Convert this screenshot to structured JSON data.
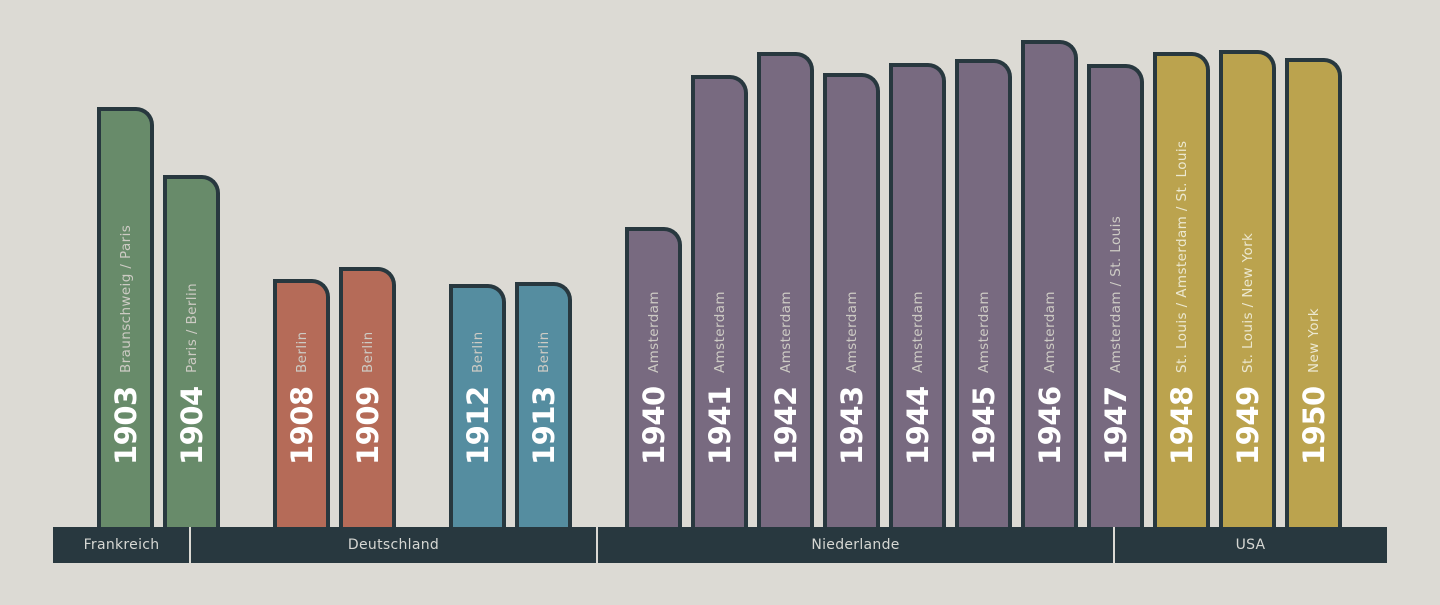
{
  "chart_data": {
    "type": "bar",
    "title": "",
    "xlabel": "",
    "ylabel": "",
    "colors": {
      "Frankreich": "#688b6a",
      "Deutschland": "#b56b58",
      "Deutschland-2": "#558da0",
      "Niederlande": "#786a80",
      "USA": "#bba34e",
      "outline": "#28383f",
      "city_text_light": "#cdcbc4",
      "city_text_dark": "#ece8d0"
    },
    "bars": [
      {
        "year": "1903",
        "city": "Braunschweig / Paris",
        "height": 420,
        "group": "Frankreich"
      },
      {
        "year": "1904",
        "city": "Paris / Berlin",
        "height": 352,
        "group": "Frankreich"
      },
      {
        "year": "1908",
        "city": "Berlin",
        "height": 248,
        "group": "Deutschland"
      },
      {
        "year": "1909",
        "city": "Berlin",
        "height": 260,
        "group": "Deutschland"
      },
      {
        "year": "1912",
        "city": "Berlin",
        "height": 243,
        "group": "Deutschland-2"
      },
      {
        "year": "1913",
        "city": "Berlin",
        "height": 245,
        "group": "Deutschland-2"
      },
      {
        "year": "1940",
        "city": "Amsterdam",
        "height": 300,
        "group": "Niederlande"
      },
      {
        "year": "1941",
        "city": "Amsterdam",
        "height": 452,
        "group": "Niederlande"
      },
      {
        "year": "1942",
        "city": "Amsterdam",
        "height": 475,
        "group": "Niederlande"
      },
      {
        "year": "1943",
        "city": "Amsterdam",
        "height": 454,
        "group": "Niederlande"
      },
      {
        "year": "1944",
        "city": "Amsterdam",
        "height": 464,
        "group": "Niederlande"
      },
      {
        "year": "1945",
        "city": "Amsterdam",
        "height": 468,
        "group": "Niederlande"
      },
      {
        "year": "1946",
        "city": "Amsterdam",
        "height": 487,
        "group": "Niederlande"
      },
      {
        "year": "1947",
        "city": "Amsterdam / St. Louis",
        "height": 463,
        "group": "Niederlande"
      },
      {
        "year": "1948",
        "city": "St. Louis / Amsterdam / St. Louis",
        "height": 475,
        "group": "USA"
      },
      {
        "year": "1949",
        "city": "St. Louis / New York",
        "height": 477,
        "group": "USA"
      },
      {
        "year": "1950",
        "city": "New York",
        "height": 469,
        "group": "USA"
      }
    ],
    "regions": [
      {
        "label": "Frankreich"
      },
      {
        "label": "Deutschland"
      },
      {
        "label": "Niederlande"
      },
      {
        "label": "USA"
      }
    ]
  }
}
